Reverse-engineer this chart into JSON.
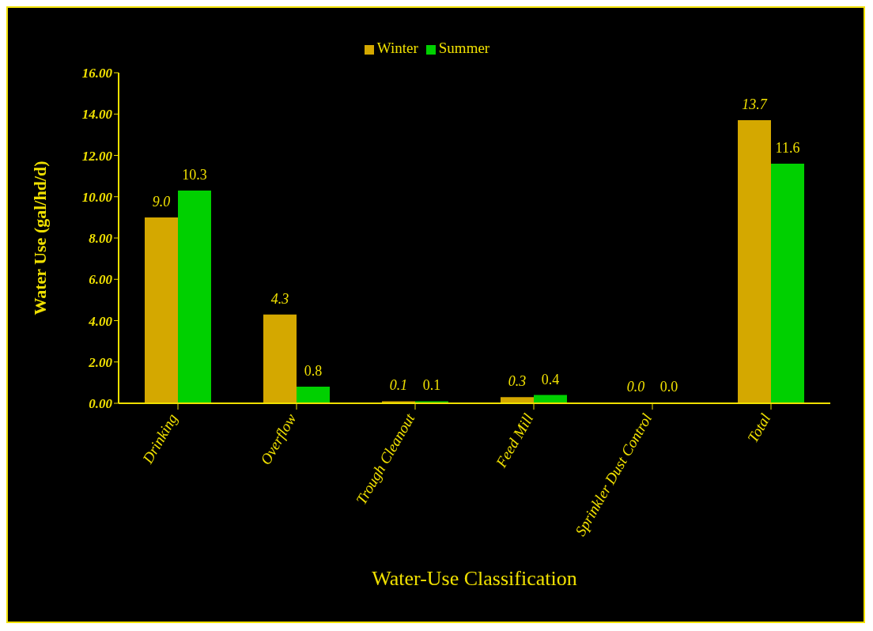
{
  "chart_data": {
    "type": "bar",
    "xlabel": "Water-Use Classification",
    "ylabel": "Water Use (gal/hd/d)",
    "categories": [
      "Drinking",
      "Overflow",
      "Trough Cleanout",
      "Feed Mill",
      "Sprinkler Dust Control",
      "Total"
    ],
    "series": [
      {
        "name": "Winter",
        "color": "#d4a800",
        "values": [
          9.0,
          4.3,
          0.1,
          0.3,
          0.0,
          13.7
        ],
        "value_labels": [
          "9.0",
          "4.3",
          "0.1",
          "0.3",
          "0.0",
          "13.7"
        ]
      },
      {
        "name": "Summer",
        "color": "#00d000",
        "values": [
          10.3,
          0.8,
          0.1,
          0.4,
          0.0,
          11.6
        ],
        "value_labels": [
          "10.3",
          "0.8",
          "0.1",
          "0.4",
          "0.0",
          "11.6"
        ]
      }
    ],
    "ylim": [
      0,
      16
    ],
    "yticks": [
      {
        "value": 0,
        "label": "0.00"
      },
      {
        "value": 2,
        "label": "2.00"
      },
      {
        "value": 4,
        "label": "4.00"
      },
      {
        "value": 6,
        "label": "6.00"
      },
      {
        "value": 8,
        "label": "8.00"
      },
      {
        "value": 10,
        "label": "10.00"
      },
      {
        "value": 12,
        "label": "12.00"
      },
      {
        "value": 14,
        "label": "14.00"
      },
      {
        "value": 16,
        "label": "16.00"
      }
    ],
    "grid": false,
    "legend": "top"
  }
}
